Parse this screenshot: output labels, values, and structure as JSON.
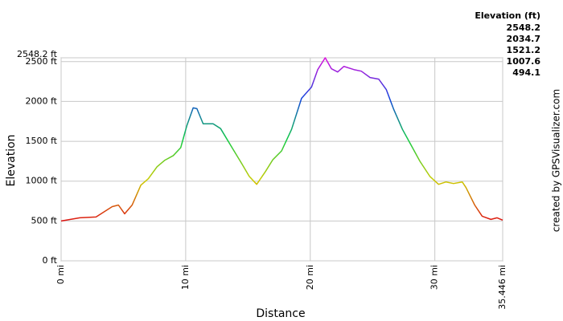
{
  "chart_data": {
    "type": "line",
    "x_label": "Distance",
    "y_label": "Elevation",
    "credit": "created by GPSVisualizer.com",
    "xlim": [
      0,
      35.446
    ],
    "ylim": [
      0,
      2548.2
    ],
    "xticks": [
      {
        "value": 0,
        "label": "0 mi"
      },
      {
        "value": 10,
        "label": "10 mi"
      },
      {
        "value": 20,
        "label": "20 mi"
      },
      {
        "value": 30,
        "label": "30 mi"
      },
      {
        "value": 35.446,
        "label": "35.446 mi"
      }
    ],
    "yticks": [
      {
        "value": 0,
        "label": "0 ft"
      },
      {
        "value": 500,
        "label": "500 ft"
      },
      {
        "value": 1000,
        "label": "1000 ft"
      },
      {
        "value": 1500,
        "label": "1500 ft"
      },
      {
        "value": 2000,
        "label": "2000 ft"
      },
      {
        "value": 2500,
        "label": "2500 ft"
      },
      {
        "value": 2548.2,
        "label": "2548.2 ft"
      }
    ],
    "grid": true,
    "color_scale": {
      "title": "Elevation (ft)",
      "stops": [
        {
          "value": 2548.2,
          "color": "#dd11dd"
        },
        {
          "value": 2034.7,
          "color": "#1144dd"
        },
        {
          "value": 1521.2,
          "color": "#11cc44"
        },
        {
          "value": 1007.6,
          "color": "#cccc00"
        },
        {
          "value": 494.1,
          "color": "#dd1111"
        }
      ]
    },
    "x": [
      0,
      1.5,
      2.8,
      4.1,
      4.6,
      5.1,
      5.7,
      6.4,
      7.0,
      7.7,
      8.3,
      9.0,
      9.6,
      10.1,
      10.6,
      10.9,
      11.4,
      12.2,
      12.8,
      13.8,
      14.5,
      15.1,
      15.7,
      16.4,
      17.0,
      17.7,
      18.5,
      19.3,
      20.1,
      20.6,
      21.2,
      21.7,
      22.2,
      22.7,
      23.5,
      24.1,
      24.8,
      25.5,
      26.1,
      26.7,
      27.4,
      28.1,
      28.8,
      29.6,
      30.3,
      30.9,
      31.5,
      32.2,
      32.5,
      33.2,
      33.8,
      34.5,
      35.0,
      35.446
    ],
    "values": [
      500,
      540,
      550,
      680,
      700,
      590,
      700,
      950,
      1030,
      1180,
      1260,
      1320,
      1420,
      1700,
      1920,
      1910,
      1720,
      1720,
      1660,
      1400,
      1220,
      1060,
      960,
      1120,
      1270,
      1380,
      1650,
      2040,
      2180,
      2400,
      2548.2,
      2410,
      2370,
      2440,
      2400,
      2380,
      2300,
      2280,
      2150,
      1900,
      1650,
      1450,
      1250,
      1060,
      960,
      990,
      970,
      990,
      920,
      700,
      560,
      520,
      540,
      510
    ]
  }
}
